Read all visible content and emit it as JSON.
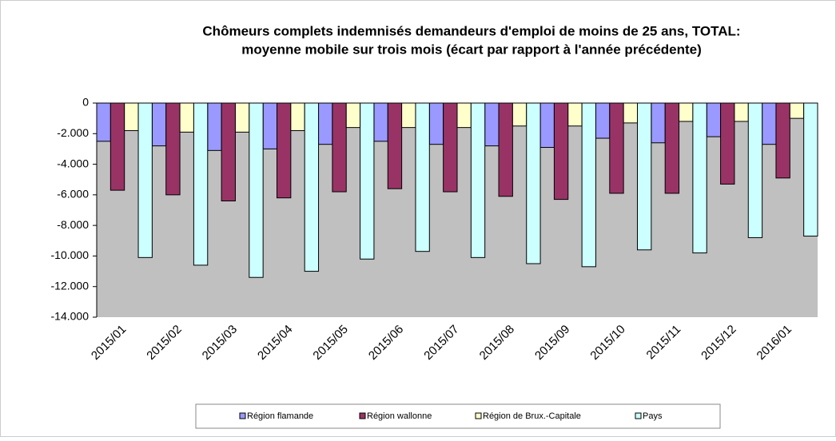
{
  "chart_data": {
    "type": "bar",
    "title": [
      "Chômeurs complets indemnisés demandeurs d'emploi de moins de 25 ans, TOTAL:",
      "moyenne mobile sur trois mois (écart par rapport à l'année précédente)"
    ],
    "categories": [
      "2015/01",
      "2015/02",
      "2015/03",
      "2015/04",
      "2015/05",
      "2015/06",
      "2015/07",
      "2015/08",
      "2015/09",
      "2015/10",
      "2015/11",
      "2015/12",
      "2016/01"
    ],
    "series": [
      {
        "name": "Région flamande",
        "color": "#9999ff",
        "values": [
          -2500,
          -2800,
          -3100,
          -3000,
          -2700,
          -2500,
          -2700,
          -2800,
          -2900,
          -2300,
          -2600,
          -2200,
          -2700
        ]
      },
      {
        "name": "Région wallonne",
        "color": "#993366",
        "values": [
          -5700,
          -6000,
          -6400,
          -6200,
          -5800,
          -5600,
          -5800,
          -6100,
          -6300,
          -5900,
          -5900,
          -5300,
          -4900
        ]
      },
      {
        "name": "Région de Brux.-Capitale",
        "color": "#ffffcc",
        "values": [
          -1800,
          -1900,
          -1900,
          -1800,
          -1600,
          -1600,
          -1600,
          -1500,
          -1500,
          -1300,
          -1200,
          -1200,
          -1000
        ]
      },
      {
        "name": "Pays",
        "color": "#ccffff",
        "values": [
          -10100,
          -10600,
          -11400,
          -11000,
          -10200,
          -9700,
          -10100,
          -10500,
          -10700,
          -9600,
          -9800,
          -8800,
          -8700
        ]
      }
    ],
    "ylim": [
      -14000,
      0
    ],
    "yticks": [
      0,
      {
        "value": -2000,
        "label": "-2.000"
      },
      {
        "value": -4000,
        "label": "-4.000"
      },
      {
        "value": -6000,
        "label": "-6.000"
      },
      {
        "value": -8000,
        "label": "-8.000"
      },
      {
        "value": -10000,
        "label": "-10.000"
      },
      {
        "value": -12000,
        "label": "-12.000"
      },
      {
        "value": -14000,
        "label": "-14.000"
      }
    ],
    "plot_background": "#c0c0c0"
  }
}
